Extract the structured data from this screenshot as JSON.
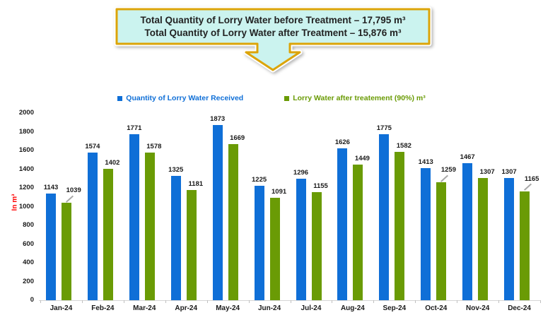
{
  "callout": {
    "line1": "Total Quantity of Lorry Water before Treatment – 17,795 m³",
    "line2": "Total Quantity of Lorry Water after Treatment – 15,876 m³",
    "fill_color": "#CBF3EF",
    "border_color": "#DCA408"
  },
  "legend": [
    {
      "label": "Quantity of Lorry Water Received",
      "color": "#0F6FD7"
    },
    {
      "label": "Lorry Water after treatement (90%) m³",
      "color": "#6A9B05"
    }
  ],
  "chart_data": {
    "type": "bar",
    "categories": [
      "Jan-24",
      "Feb-24",
      "Mar-24",
      "Apr-24",
      "May-24",
      "Jun-24",
      "Jul-24",
      "Aug-24",
      "Sep-24",
      "Oct-24",
      "Nov-24",
      "Dec-24"
    ],
    "series": [
      {
        "name": "Quantity of Lorry Water Received",
        "color": "#0F6FD7",
        "values": [
          1143,
          1574,
          1771,
          1325,
          1873,
          1225,
          1296,
          1626,
          1775,
          1413,
          1467,
          1307
        ]
      },
      {
        "name": "Lorry Water after treatement (90%) m³",
        "color": "#6A9B05",
        "values": [
          1039,
          1402,
          1578,
          1181,
          1669,
          1091,
          1155,
          1449,
          1582,
          1259,
          1307,
          1165
        ]
      }
    ],
    "title": "",
    "xlabel": "",
    "ylabel": "In m³",
    "ylabel_color": "#FF0000",
    "ylim": [
      0,
      2000
    ],
    "ytick_step": 200,
    "grid": false,
    "legend_position": "top",
    "data_labels": true,
    "leader_label_indices": [
      0,
      9,
      11
    ]
  }
}
